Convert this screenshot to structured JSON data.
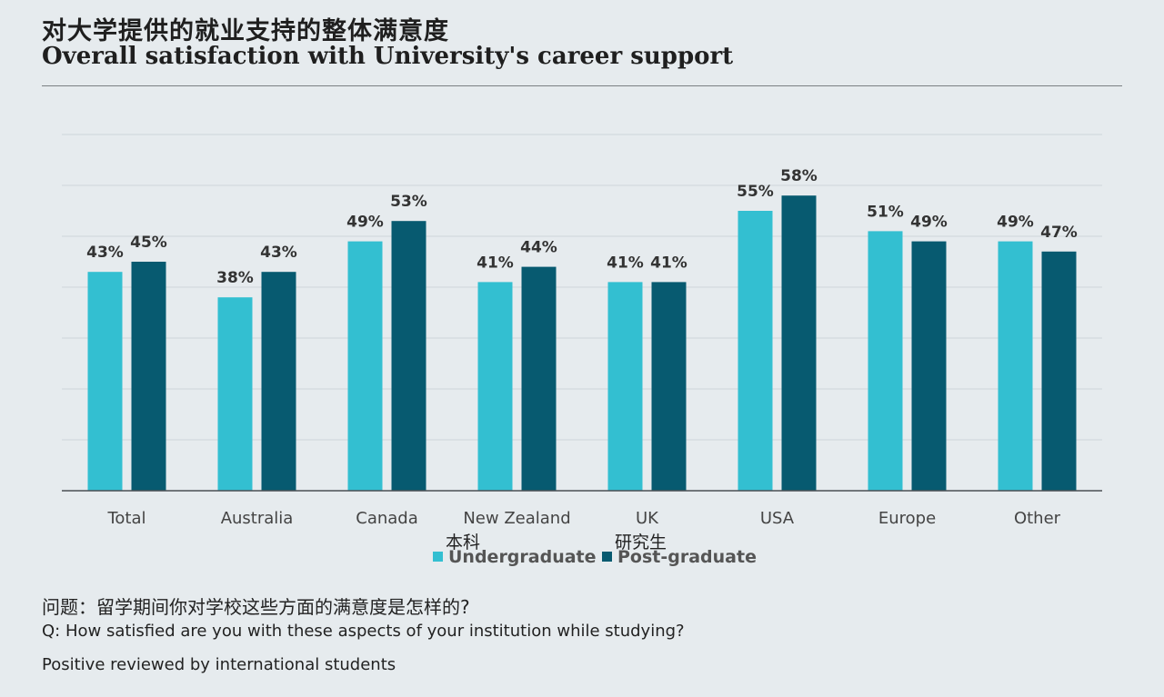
{
  "header": {
    "title_cn": "对大学提供的就业支持的整体满意度",
    "title_en": "Overall satisfaction with University's career support"
  },
  "chart_data": {
    "type": "bar",
    "categories": [
      "Total",
      "Australia",
      "Canada",
      "New Zealand",
      "UK",
      "USA",
      "Europe",
      "Other"
    ],
    "series": [
      {
        "name": "Undergraduate",
        "name_cn": "本科",
        "color": "#33bfd1",
        "values": [
          43,
          38,
          49,
          41,
          41,
          55,
          51,
          49
        ],
        "labels": [
          "43%",
          "38%",
          "49%",
          "41%",
          "41%",
          "55%",
          "51%",
          "49%"
        ]
      },
      {
        "name": "Post-graduate",
        "name_cn": "研究生",
        "color": "#075a70",
        "values": [
          45,
          43,
          53,
          44,
          41,
          58,
          49,
          47
        ],
        "labels": [
          "45%",
          "43%",
          "53%",
          "44%",
          "41%",
          "58%",
          "49%",
          "47%"
        ]
      }
    ],
    "ylim": [
      0,
      70
    ],
    "grid": true,
    "legend": "bottom-center"
  },
  "footer": {
    "question_cn": "问题：留学期间你对学校这些方面的满意度是怎样的?",
    "question_en": "Q: How satisfied are you with these aspects of your institution while studying?",
    "note": "Positive reviewed by international students"
  }
}
